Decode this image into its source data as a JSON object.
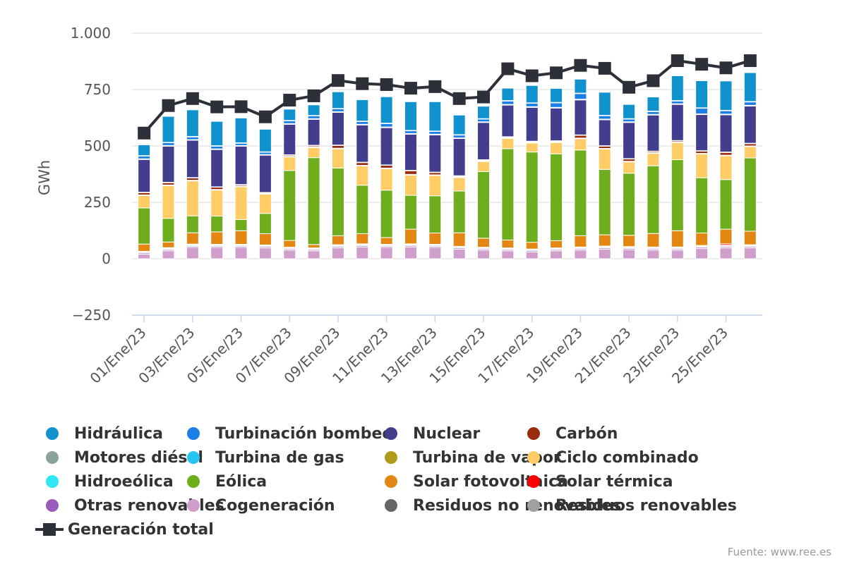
{
  "chart_data": {
    "type": "bar",
    "stacked": true,
    "ylabel": "GWh",
    "ylim": [
      -250,
      1000
    ],
    "yticks": [
      -250,
      0,
      250,
      500,
      750,
      1000
    ],
    "ytick_labels": [
      "−250",
      "0",
      "250",
      "500",
      "750",
      "1.000"
    ],
    "grid": true,
    "legend_position": "bottom",
    "categories": [
      "01/Ene/23",
      "02/Ene/23",
      "03/Ene/23",
      "04/Ene/23",
      "05/Ene/23",
      "06/Ene/23",
      "07/Ene/23",
      "08/Ene/23",
      "09/Ene/23",
      "10/Ene/23",
      "11/Ene/23",
      "12/Ene/23",
      "13/Ene/23",
      "14/Ene/23",
      "15/Ene/23",
      "16/Ene/23",
      "17/Ene/23",
      "18/Ene/23",
      "19/Ene/23",
      "20/Ene/23",
      "21/Ene/23",
      "22/Ene/23",
      "23/Ene/23",
      "24/Ene/23",
      "25/Ene/23",
      "26/Ene/23"
    ],
    "tick_labels": [
      "01/Ene/23",
      "03/Ene/23",
      "05/Ene/23",
      "07/Ene/23",
      "09/Ene/23",
      "11/Ene/23",
      "13/Ene/23",
      "15/Ene/23",
      "17/Ene/23",
      "19/Ene/23",
      "21/Ene/23",
      "23/Ene/23",
      "25/Ene/23"
    ],
    "series": [
      {
        "name": "Cogeneración",
        "color": "#cf9ecb",
        "values": [
          20,
          35,
          50,
          50,
          50,
          48,
          38,
          35,
          48,
          52,
          50,
          52,
          50,
          42,
          38,
          35,
          30,
          35,
          38,
          42,
          40,
          38,
          38,
          45,
          48,
          48
        ]
      },
      {
        "name": "Otras renovables",
        "color": "#9a5cbc",
        "values": [
          5,
          5,
          5,
          5,
          5,
          5,
          5,
          5,
          5,
          5,
          5,
          5,
          5,
          5,
          5,
          5,
          5,
          5,
          5,
          5,
          5,
          5,
          5,
          5,
          5,
          5
        ]
      },
      {
        "name": "Residuos renovables",
        "color": "#a0a0a0",
        "values": [
          4,
          4,
          4,
          4,
          4,
          4,
          4,
          4,
          4,
          4,
          4,
          4,
          4,
          4,
          4,
          4,
          4,
          4,
          4,
          4,
          4,
          4,
          4,
          4,
          4,
          4
        ]
      },
      {
        "name": "Residuos no renovables",
        "color": "#666666",
        "values": [
          3,
          3,
          3,
          3,
          3,
          3,
          3,
          3,
          3,
          3,
          3,
          3,
          3,
          3,
          3,
          3,
          3,
          3,
          3,
          3,
          3,
          3,
          3,
          3,
          3,
          3
        ]
      },
      {
        "name": "Solar térmica",
        "color": "#ff0000",
        "values": [
          1,
          2,
          3,
          2,
          2,
          1,
          1,
          1,
          2,
          2,
          2,
          2,
          2,
          1,
          1,
          1,
          1,
          1,
          2,
          2,
          2,
          2,
          2,
          2,
          6,
          2
        ]
      },
      {
        "name": "Solar fotovoltaica",
        "color": "#e48712",
        "values": [
          32,
          25,
          50,
          55,
          60,
          50,
          30,
          15,
          40,
          45,
          30,
          65,
          50,
          60,
          40,
          35,
          30,
          32,
          50,
          50,
          50,
          60,
          72,
          55,
          65,
          60
        ]
      },
      {
        "name": "Eólica",
        "color": "#6eae1d",
        "values": [
          160,
          105,
          75,
          70,
          50,
          90,
          310,
          385,
          300,
          215,
          210,
          150,
          165,
          185,
          295,
          405,
          400,
          385,
          380,
          290,
          275,
          300,
          315,
          245,
          220,
          325
        ]
      },
      {
        "name": "Ciclo combinado",
        "color": "#ffcc66",
        "values": [
          55,
          145,
          155,
          115,
          145,
          85,
          60,
          45,
          85,
          85,
          95,
          90,
          90,
          60,
          45,
          45,
          40,
          50,
          50,
          90,
          50,
          55,
          75,
          105,
          105,
          50
        ]
      },
      {
        "name": "Turbina de vapor",
        "color": "#b09a1a",
        "values": [
          3,
          3,
          3,
          3,
          3,
          3,
          3,
          3,
          3,
          3,
          3,
          3,
          3,
          3,
          3,
          3,
          3,
          3,
          3,
          3,
          3,
          3,
          3,
          3,
          3,
          3
        ]
      },
      {
        "name": "Carbón",
        "color": "#9b2b0e",
        "values": [
          10,
          10,
          10,
          10,
          5,
          3,
          5,
          5,
          12,
          12,
          12,
          16,
          10,
          3,
          3,
          3,
          3,
          3,
          12,
          10,
          10,
          5,
          5,
          10,
          12,
          10
        ]
      },
      {
        "name": "Motores diésel",
        "color": "#8ca39a",
        "values": [
          2,
          2,
          2,
          2,
          2,
          2,
          2,
          2,
          2,
          2,
          2,
          2,
          2,
          2,
          2,
          2,
          2,
          2,
          2,
          2,
          2,
          2,
          2,
          2,
          2,
          2
        ]
      },
      {
        "name": "Nuclear",
        "color": "#423d8c",
        "values": [
          145,
          160,
          165,
          165,
          170,
          165,
          135,
          115,
          145,
          165,
          165,
          160,
          165,
          165,
          165,
          140,
          150,
          145,
          155,
          115,
          160,
          160,
          160,
          160,
          165,
          165
        ]
      },
      {
        "name": "Turbina de gas",
        "color": "#25c6f2",
        "values": [
          3,
          3,
          3,
          3,
          3,
          3,
          3,
          3,
          3,
          3,
          3,
          3,
          3,
          3,
          3,
          3,
          3,
          3,
          3,
          3,
          3,
          3,
          3,
          3,
          3,
          3
        ]
      },
      {
        "name": "Turbinación bombeo",
        "color": "#1a7ee6",
        "values": [
          12,
          12,
          12,
          12,
          10,
          10,
          12,
          12,
          12,
          12,
          15,
          12,
          12,
          12,
          12,
          15,
          15,
          20,
          25,
          15,
          12,
          12,
          12,
          25,
          15,
          15
        ]
      },
      {
        "name": "Hidroeólica",
        "color": "#2ee7f5",
        "values": [
          2,
          2,
          2,
          2,
          2,
          2,
          2,
          2,
          2,
          2,
          2,
          2,
          2,
          2,
          2,
          2,
          2,
          2,
          2,
          2,
          2,
          2,
          2,
          2,
          2,
          2
        ]
      },
      {
        "name": "Hidráulica",
        "color": "#1092cf",
        "values": [
          48,
          115,
          118,
          108,
          110,
          100,
          50,
          47,
          74,
          95,
          117,
          127,
          130,
          87,
          55,
          55,
          77,
          62,
          62,
          102,
          63,
          63,
          110,
          120,
          130,
          128
        ]
      }
    ],
    "total_series": {
      "name": "Generación total",
      "color": "#2d3039",
      "values": [
        557,
        679,
        710,
        673,
        674,
        629,
        703,
        722,
        790,
        776,
        772,
        756,
        763,
        710,
        717,
        842,
        811,
        824,
        857,
        844,
        760,
        789,
        878,
        862,
        846,
        878
      ]
    }
  },
  "legend": [
    {
      "label": "Hidráulica",
      "color": "#1092cf"
    },
    {
      "label": "Turbinación bombeo",
      "color": "#1a7ee6"
    },
    {
      "label": "Nuclear",
      "color": "#423d8c"
    },
    {
      "label": "Carbón",
      "color": "#9b2b0e"
    },
    {
      "label": "Motores diésel",
      "color": "#8ca39a"
    },
    {
      "label": "Turbina de gas",
      "color": "#25c6f2"
    },
    {
      "label": "Turbina de vapor",
      "color": "#b09a1a"
    },
    {
      "label": "Ciclo combinado",
      "color": "#ffcc66"
    },
    {
      "label": "Hidroeólica",
      "color": "#2ee7f5"
    },
    {
      "label": "Eólica",
      "color": "#6eae1d"
    },
    {
      "label": "Solar fotovoltaica",
      "color": "#e48712"
    },
    {
      "label": "Solar térmica",
      "color": "#ff0000"
    },
    {
      "label": "Otras renovables",
      "color": "#9a5cbc"
    },
    {
      "label": "Cogeneración",
      "color": "#cf9ecb"
    },
    {
      "label": "Residuos no renovables",
      "color": "#666666"
    },
    {
      "label": "Residuos renovables",
      "color": "#a0a0a0"
    },
    {
      "label": "Generación total",
      "color": "#2d3039",
      "marker": "line-square"
    }
  ],
  "credits": "Fuente: www.ree.es"
}
